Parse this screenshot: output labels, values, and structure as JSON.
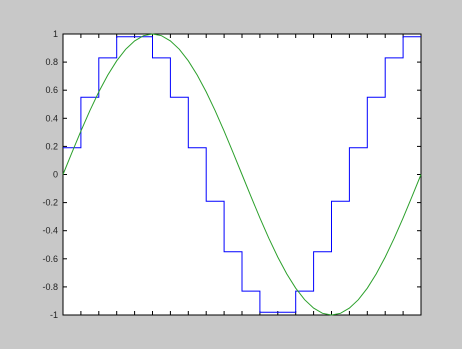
{
  "figure": {
    "background": "#c8c8c8",
    "axes_background": "#ffffff"
  },
  "chart_data": {
    "type": "line",
    "title": "",
    "xlabel": "",
    "ylabel": "",
    "xlim": [
      0,
      2
    ],
    "ylim": [
      -1,
      1
    ],
    "y_ticks": [
      -1,
      -0.8,
      -0.6,
      -0.4,
      -0.2,
      0,
      0.2,
      0.4,
      0.6,
      0.8,
      1
    ],
    "y_tick_labels": [
      "-1",
      "-0.8",
      "-0.6",
      "-0.4",
      "-0.2",
      "0",
      "0.2",
      "0.4",
      "0.6",
      "0.8",
      "1"
    ],
    "x_ticks": [
      0,
      0.1,
      0.2,
      0.3,
      0.4,
      0.5,
      0.6,
      0.7,
      0.8,
      0.9,
      1,
      1.1,
      1.2,
      1.3,
      1.4,
      1.5,
      1.6,
      1.7,
      1.8,
      1.9,
      2
    ],
    "x_tick_labels_shown": false,
    "grid": false,
    "legend": "none",
    "series": [
      {
        "kind": "stairs",
        "color": "#0000ff",
        "x": [
          0,
          0.1,
          0.2,
          0.3,
          0.4,
          0.5,
          0.6,
          0.7,
          0.8,
          0.9,
          1,
          1.1,
          1.2,
          1.3,
          1.4,
          1.5,
          1.6,
          1.7,
          1.8,
          1.9,
          2
        ],
        "values": [
          0.19,
          0.55,
          0.83,
          0.98,
          0.98,
          0.83,
          0.55,
          0.19,
          -0.19,
          -0.55,
          -0.83,
          -0.98,
          -0.98,
          -0.83,
          -0.55,
          -0.19,
          0.19,
          0.55,
          0.83,
          0.98,
          0.98
        ]
      },
      {
        "kind": "line",
        "color": "#2ca02c",
        "x": [
          0,
          0.05,
          0.1,
          0.15,
          0.2,
          0.25,
          0.3,
          0.35,
          0.4,
          0.45,
          0.5,
          0.55,
          0.6,
          0.65,
          0.7,
          0.75,
          0.8,
          0.85,
          0.9,
          0.95,
          1,
          1.05,
          1.1,
          1.15,
          1.2,
          1.25,
          1.3,
          1.35,
          1.4,
          1.45,
          1.5,
          1.55,
          1.6,
          1.65,
          1.7,
          1.75,
          1.8,
          1.85,
          1.9,
          1.95,
          2
        ],
        "values": [
          0,
          0.156,
          0.309,
          0.454,
          0.588,
          0.707,
          0.809,
          0.891,
          0.951,
          0.988,
          1,
          0.988,
          0.951,
          0.891,
          0.809,
          0.707,
          0.588,
          0.454,
          0.309,
          0.156,
          0,
          -0.156,
          -0.309,
          -0.454,
          -0.588,
          -0.707,
          -0.809,
          -0.891,
          -0.951,
          -0.988,
          -1,
          -0.988,
          -0.951,
          -0.891,
          -0.809,
          -0.707,
          -0.588,
          -0.454,
          -0.309,
          -0.156,
          0
        ]
      }
    ]
  }
}
